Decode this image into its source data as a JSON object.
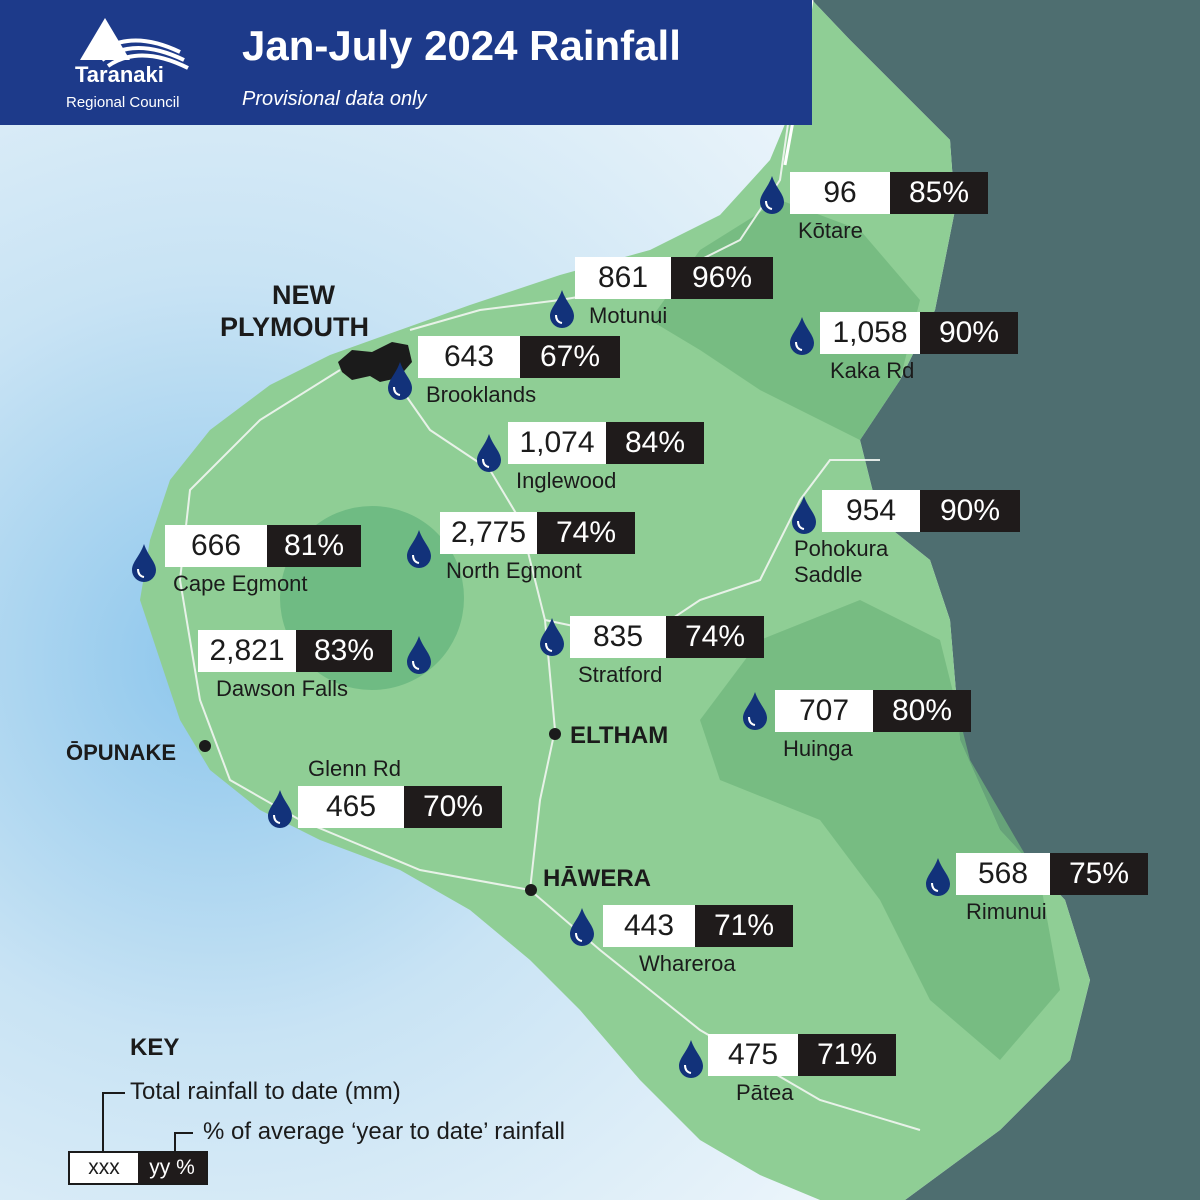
{
  "header": {
    "title": "Jan-July 2024 Rainfall",
    "subtitle": "Provisional data only",
    "org_name": "Taranaki",
    "org_sub": "Regional Council"
  },
  "stations": {
    "kotare": {
      "name": "Kōtare",
      "total": "96",
      "pct": "85%"
    },
    "motunui": {
      "name": "Motunui",
      "total": "861",
      "pct": "96%"
    },
    "kaka_rd": {
      "name": "Kaka Rd",
      "total": "1,058",
      "pct": "90%"
    },
    "brooklands": {
      "name": "Brooklands",
      "total": "643",
      "pct": "67%"
    },
    "inglewood": {
      "name": "Inglewood",
      "total": "1,074",
      "pct": "84%"
    },
    "pohokura": {
      "name": "Pohokura",
      "name2": "Saddle",
      "total": "954",
      "pct": "90%"
    },
    "north_egmont": {
      "name": "North Egmont",
      "total": "2,775",
      "pct": "74%"
    },
    "cape_egmont": {
      "name": "Cape Egmont",
      "total": "666",
      "pct": "81%"
    },
    "stratford": {
      "name": "Stratford",
      "total": "835",
      "pct": "74%"
    },
    "dawson_falls": {
      "name": "Dawson Falls",
      "total": "2,821",
      "pct": "83%"
    },
    "huinga": {
      "name": "Huinga",
      "total": "707",
      "pct": "80%"
    },
    "glenn_rd": {
      "name": "Glenn Rd",
      "total": "465",
      "pct": "70%"
    },
    "rimunui": {
      "name": "Rimunui",
      "total": "568",
      "pct": "75%"
    },
    "whareroa": {
      "name": "Whareroa",
      "total": "443",
      "pct": "71%"
    },
    "patea": {
      "name": "Pātea",
      "total": "475",
      "pct": "71%"
    }
  },
  "towns": {
    "new_plymouth_1": "NEW",
    "new_plymouth_2": "PLYMOUTH",
    "opunake": "ŌPUNAKE",
    "eltham": "ELTHAM",
    "hawera": "HĀWERA"
  },
  "key": {
    "title": "KEY",
    "total_label": "Total rainfall to date (mm)",
    "pct_label": "% of average ‘year to date’ rainfall",
    "sample_value": "xxx",
    "sample_pct": "yy %"
  },
  "colors": {
    "header": "#1d3a8a",
    "land": "#8fce95",
    "sea_dark": "#4e6e70",
    "drop": "#12327a"
  }
}
